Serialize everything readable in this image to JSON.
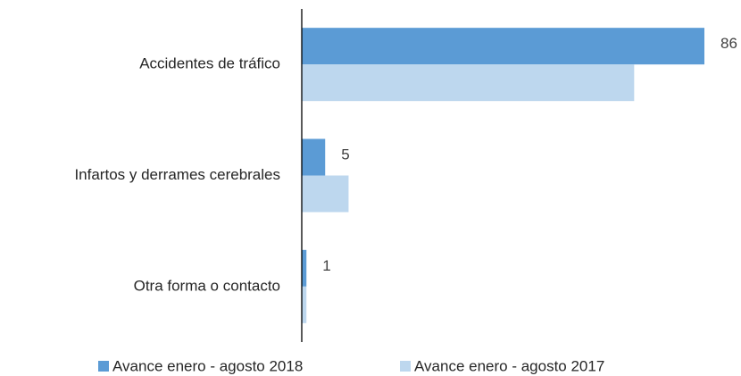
{
  "chart_data": {
    "type": "hbar",
    "categories": [
      "Accidentes de tráfico",
      "Infartos y derrames cerebrales",
      "Otra forma o contacto"
    ],
    "series": [
      {
        "name": "Avance enero - agosto 2018",
        "color": "#5b9bd5",
        "values": [
          86,
          5,
          1
        ],
        "data_labels": true
      },
      {
        "name": "Avance enero - agosto 2017",
        "color": "#bdd7ee",
        "values": [
          71,
          10,
          1
        ],
        "data_labels": false
      }
    ],
    "legend": "bottom"
  }
}
